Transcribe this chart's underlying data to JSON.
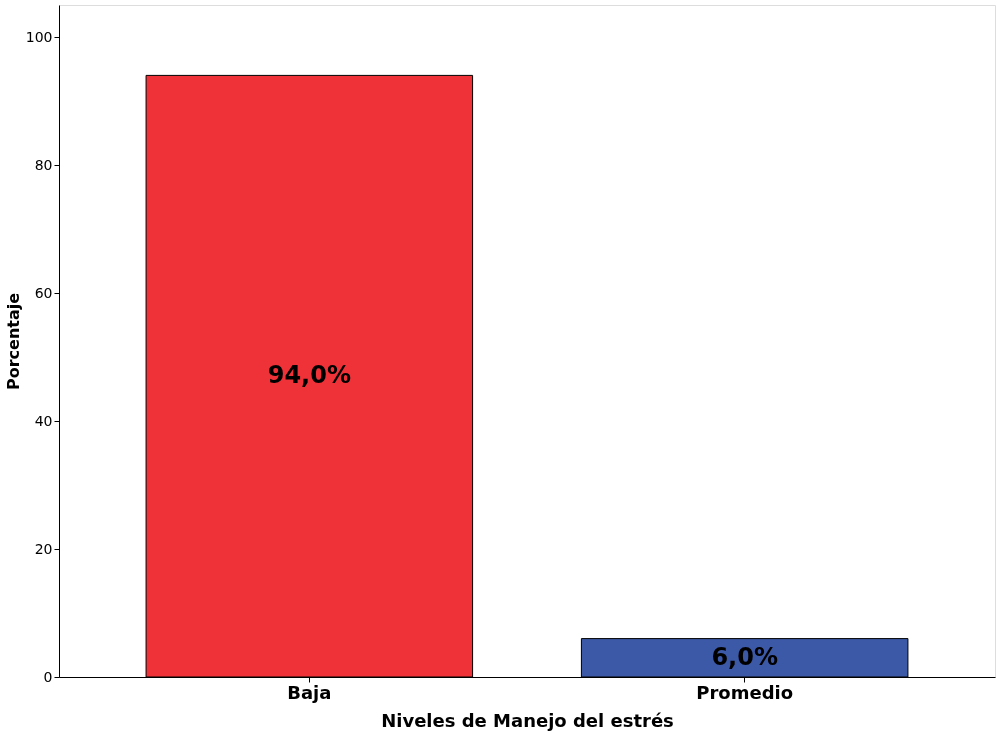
{
  "chart_data": {
    "type": "bar",
    "xlabel": "Niveles de Manejo del estrés",
    "ylabel": "Porcentaje",
    "categories": [
      "Baja",
      "Promedio"
    ],
    "values": [
      94.0,
      6.0
    ],
    "colors": [
      "#ef3237",
      "#3c59a8"
    ],
    "value_labels": [
      "94,0%",
      "6,0%"
    ],
    "ylim": [
      0,
      105
    ],
    "yticks": [
      0,
      20,
      40,
      60,
      80,
      100
    ],
    "grid": false
  }
}
